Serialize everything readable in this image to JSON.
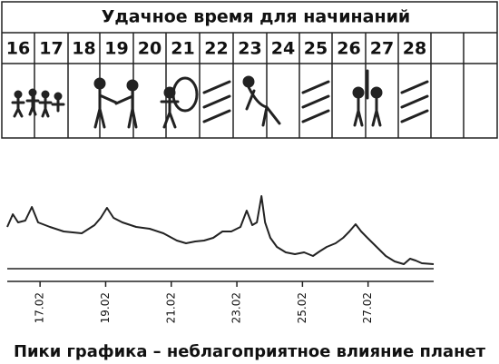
{
  "table": {
    "title": "Удачное время для начинаний",
    "dates": [
      "16",
      "17",
      "18",
      "19",
      "20",
      "21",
      "22",
      "23",
      "24",
      "25",
      "26",
      "27",
      "28"
    ]
  },
  "chart_data": {
    "type": "line",
    "x": [
      16.0,
      16.17,
      16.33,
      16.55,
      16.75,
      16.94,
      17.3,
      17.72,
      18.27,
      18.66,
      18.85,
      19.04,
      19.24,
      19.51,
      19.93,
      20.34,
      20.76,
      21.17,
      21.45,
      21.73,
      22.0,
      22.28,
      22.56,
      22.83,
      23.11,
      23.3,
      23.47,
      23.61,
      23.75,
      23.86,
      24.02,
      24.22,
      24.49,
      24.77,
      25.05,
      25.32,
      25.52,
      25.74,
      26.01,
      26.24,
      26.43,
      26.62,
      26.79,
      26.98,
      27.26,
      27.54,
      27.81,
      28.09,
      28.28,
      28.45,
      28.64,
      29.0
    ],
    "series": [
      {
        "color": "#222222",
        "values": [
          46,
          60,
          51,
          53,
          68,
          51,
          46,
          41,
          39,
          48,
          56,
          67,
          56,
          51,
          46,
          44,
          39,
          31,
          28,
          30,
          31,
          34,
          41,
          41,
          46,
          64,
          48,
          51,
          80,
          51,
          34,
          24,
          18,
          16,
          18,
          14,
          19,
          24,
          28,
          34,
          41,
          49,
          41,
          34,
          24,
          14,
          8,
          5,
          11,
          9,
          6,
          5
        ]
      }
    ],
    "xlim": [
      16,
      29
    ],
    "ylim": [
      0,
      100
    ],
    "xticks": [
      {
        "value": 17,
        "label": "17.02"
      },
      {
        "value": 19,
        "label": "19.02"
      },
      {
        "value": 21,
        "label": "21.02"
      },
      {
        "value": 23,
        "label": "23.02"
      },
      {
        "value": 25,
        "label": "25.02"
      },
      {
        "value": 27,
        "label": "27.02"
      }
    ],
    "caption": "Пики графика – неблагоприятное влияние планет"
  }
}
